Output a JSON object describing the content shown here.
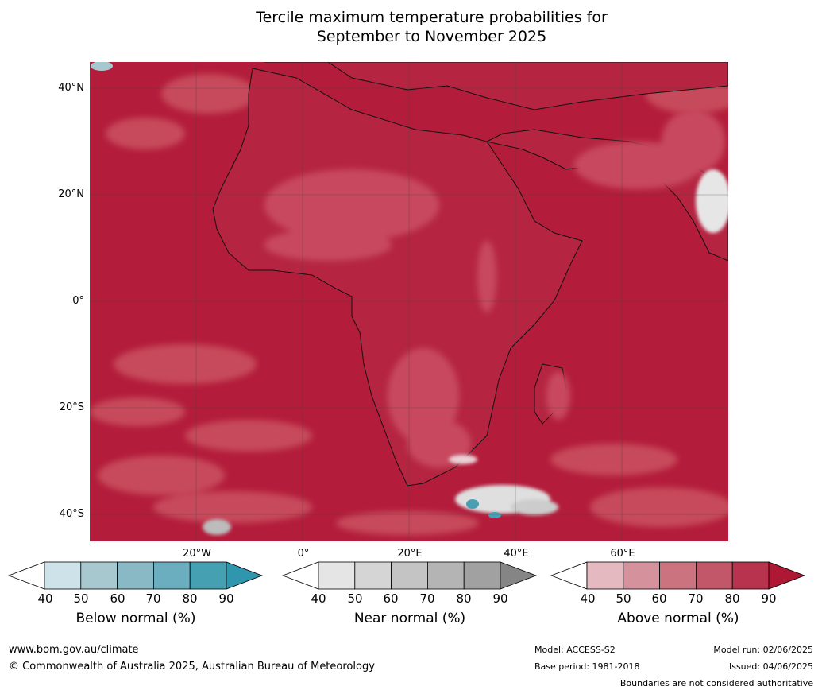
{
  "title": {
    "line1": "Tercile maximum temperature probabilities for",
    "line2": "September to November 2025"
  },
  "map": {
    "latitude_labels": [
      "40°N",
      "20°N",
      "0°",
      "20°S",
      "40°S"
    ],
    "longitude_labels": [
      "20°W",
      "0°",
      "20°E",
      "40°E",
      "60°E"
    ],
    "dominant_category": "Above normal",
    "ocean_dominant_colour": "#b31d3b",
    "land_light_colour": "#c84a5f"
  },
  "colorbars": [
    {
      "label": "Below normal (%)",
      "ticks": [
        "40",
        "50",
        "60",
        "70",
        "80",
        "90"
      ],
      "colors": [
        "#ffffff",
        "#cde3e9",
        "#a8c8cf",
        "#89b9c5",
        "#6aaebf",
        "#45a0b1",
        "#2f96ad"
      ]
    },
    {
      "label": "Near normal (%)",
      "ticks": [
        "40",
        "50",
        "60",
        "70",
        "80",
        "90"
      ],
      "colors": [
        "#ffffff",
        "#e5e5e5",
        "#d5d5d5",
        "#c4c4c4",
        "#b4b4b4",
        "#a1a1a1",
        "#858585"
      ]
    },
    {
      "label": "Above normal (%)",
      "ticks": [
        "40",
        "50",
        "60",
        "70",
        "80",
        "90"
      ],
      "colors": [
        "#ffffff",
        "#e4b9c0",
        "#d5929c",
        "#cc7380",
        "#c25769",
        "#b7334e",
        "#ae1834"
      ]
    }
  ],
  "footer": {
    "website": "www.bom.gov.au/climate",
    "copyright": "© Commonwealth of Australia 2025, Australian Bureau of Meteorology",
    "model": "Model: ACCESS-S2",
    "base_period": "Base period: 1981-2018",
    "model_run": "Model run: 02/06/2025",
    "issued": "Issued: 04/06/2025",
    "disclaimer": "Boundaries are not considered authoritative"
  }
}
